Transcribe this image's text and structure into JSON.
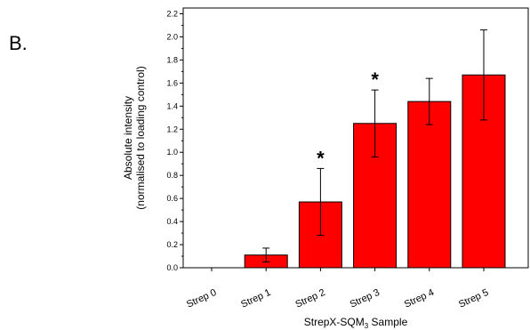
{
  "panel_label": "B.",
  "chart_data": {
    "type": "bar",
    "categories": [
      "Strep 0",
      "Strep 1",
      "Strep 2",
      "Strep 3",
      "Strep 4",
      "Strep 5"
    ],
    "values": [
      0.0,
      0.11,
      0.57,
      1.25,
      1.44,
      1.67
    ],
    "errors": [
      0.0,
      0.06,
      0.29,
      0.29,
      0.2,
      0.39
    ],
    "significance": [
      "",
      "",
      "*",
      "*",
      "",
      ""
    ],
    "ylabel_line1": "Absolute intensity",
    "ylabel_line2": "(normalised to loading control)",
    "xlabel_main": "StrepX-SQM",
    "xlabel_sub": "3",
    "xlabel_rest": " Sample",
    "ylim": [
      0,
      2.25
    ],
    "yticks": [
      "0.0",
      "0.2",
      "0.4",
      "0.6",
      "0.8",
      "1.0",
      "1.2",
      "1.4",
      "1.6",
      "1.8",
      "2.0",
      "2.2"
    ],
    "bar_color": "#ff0000",
    "grid": false
  }
}
